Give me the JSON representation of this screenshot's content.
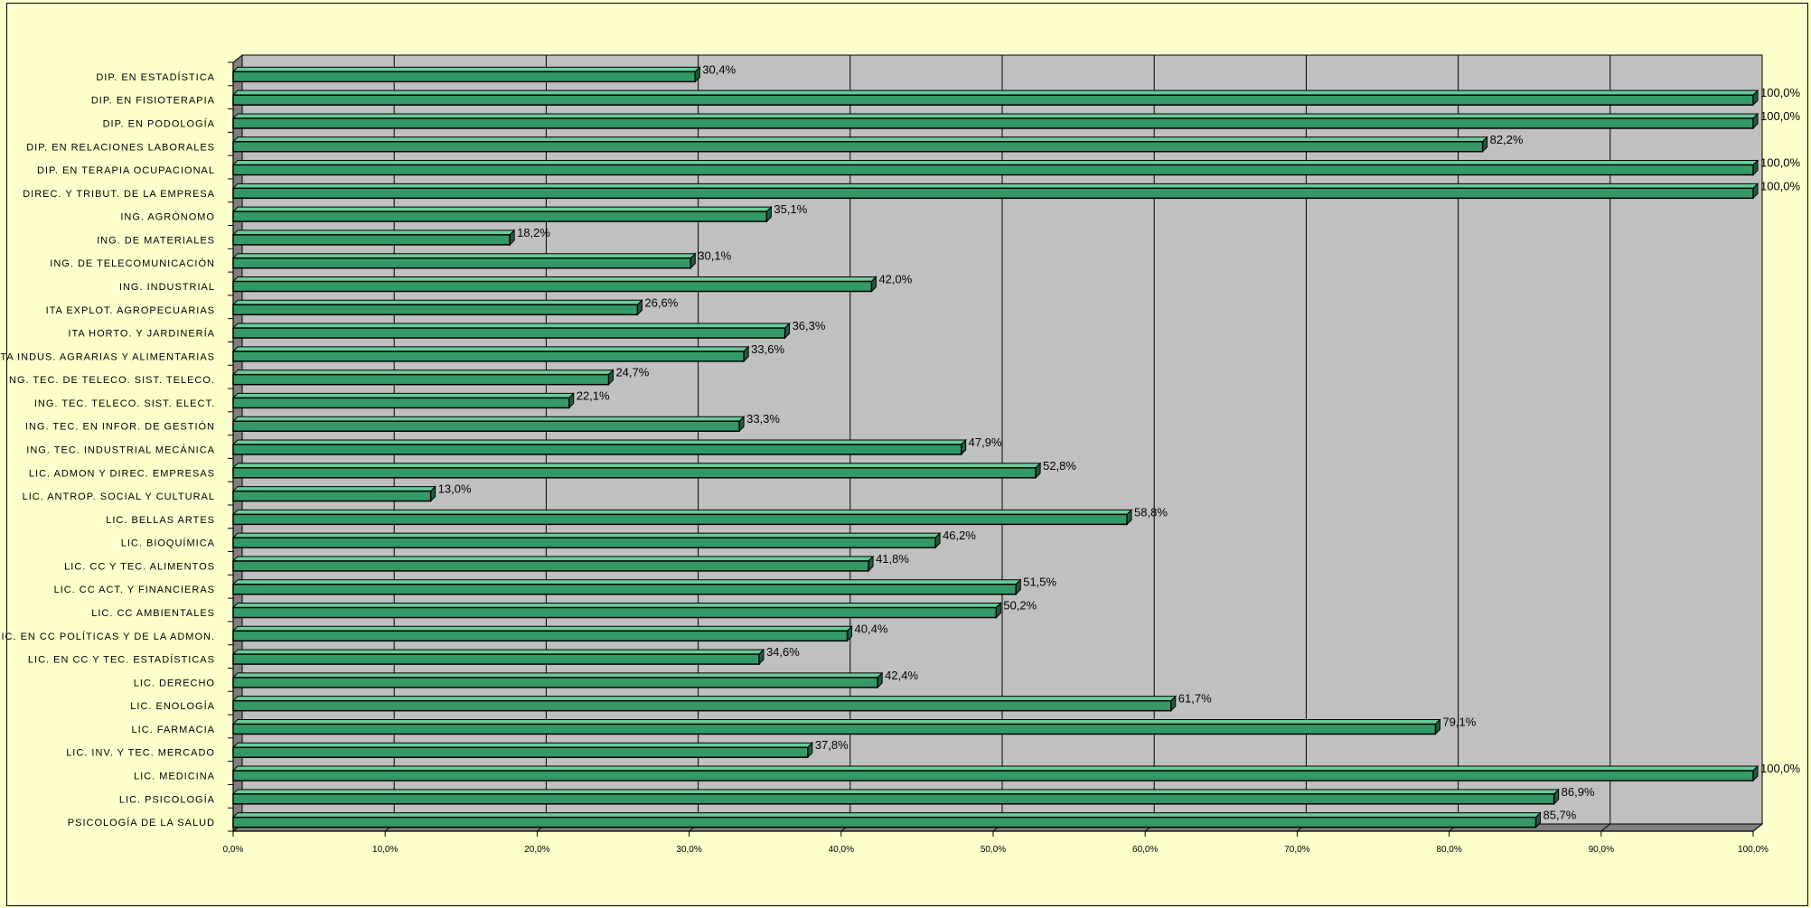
{
  "chart_data": {
    "type": "bar",
    "orientation": "horizontal",
    "categories": [
      "DIP. EN ESTADÍSTICA",
      "DIP. EN FISIOTERAPIA",
      "DIP. EN PODOLOGÍA",
      "DIP. EN RELACIONES LABORALES",
      "DIP. EN TERAPIA OCUPACIONAL",
      "DIREC. Y TRIBUT. DE LA EMPRESA",
      "ING. AGRÓNOMO",
      "ING. DE MATERIALES",
      "ING. DE TELECOMUNICACIÓN",
      "ING. INDUSTRIAL",
      "ITA EXPLOT. AGROPECUARIAS",
      "ITA HORTO. Y JARDINERÍA",
      "ITA INDUS. AGRARIAS Y ALIMENTARIAS",
      "ING. TEC. DE TELECO. SIST. TELECO.",
      "ING. TEC. TELECO. SIST. ELECT.",
      "ING. TEC. EN INFOR. DE GESTIÓN",
      "ING. TEC. INDUSTRIAL MECÁNICA",
      "LIC. ADMON Y DIREC. EMPRESAS",
      "LIC. ANTROP. SOCIAL Y CULTURAL",
      "LIC. BELLAS ARTES",
      "LIC. BIOQUÍMICA",
      "LIC. CC Y TEC. ALIMENTOS",
      "LIC. CC ACT. Y FINANCIERAS",
      "LIC. CC AMBIENTALES",
      "LIC. EN CC POLÍTICAS Y DE LA ADMON.",
      "LIC. EN CC Y TEC. ESTADÍSTICAS",
      "LIC. DERECHO",
      "LIC. ENOLOGÍA",
      "LIC. FARMACIA",
      "LIC. INV. Y TEC. MERCADO",
      "LIC. MEDICINA",
      "LIC. PSICOLOGÍA",
      "PSICOLOGÍA DE LA SALUD"
    ],
    "values": [
      30.4,
      100.0,
      100.0,
      82.2,
      100.0,
      100.0,
      35.1,
      18.2,
      30.1,
      42.0,
      26.6,
      36.3,
      33.6,
      24.7,
      22.1,
      33.3,
      47.9,
      52.8,
      13.0,
      58.8,
      46.2,
      41.8,
      51.5,
      50.2,
      40.4,
      34.6,
      42.4,
      61.7,
      79.1,
      37.8,
      100.0,
      86.9,
      85.7
    ],
    "value_labels": [
      "30,4%",
      "100,0%",
      "100,0%",
      "82,2%",
      "100,0%",
      "100,0%",
      "35,1%",
      "18,2%",
      "30,1%",
      "42,0%",
      "26,6%",
      "36,3%",
      "33,6%",
      "24,7%",
      "22,1%",
      "33,3%",
      "47,9%",
      "52,8%",
      "13,0%",
      "58,8%",
      "46,2%",
      "41,8%",
      "51,5%",
      "50,2%",
      "40,4%",
      "34,6%",
      "42,4%",
      "61,7%",
      "79,1%",
      "37,8%",
      "100,0%",
      "86,9%",
      "85,7%"
    ],
    "x_ticks": [
      "0,0%",
      "10,0%",
      "20,0%",
      "30,0%",
      "40,0%",
      "50,0%",
      "60,0%",
      "70,0%",
      "80,0%",
      "90,0%",
      "100,0%"
    ],
    "xlim": [
      0,
      100
    ],
    "grid": true,
    "colors": {
      "bar_front": "#339966",
      "bar_top": "#66CC99",
      "bar_side": "#1F5C3D",
      "bar_edge": "#000000",
      "plot_back": "#C0C0C0",
      "plot_floor": "#808080",
      "page_background": "#FFFFCC",
      "gridline": "#000000"
    }
  }
}
